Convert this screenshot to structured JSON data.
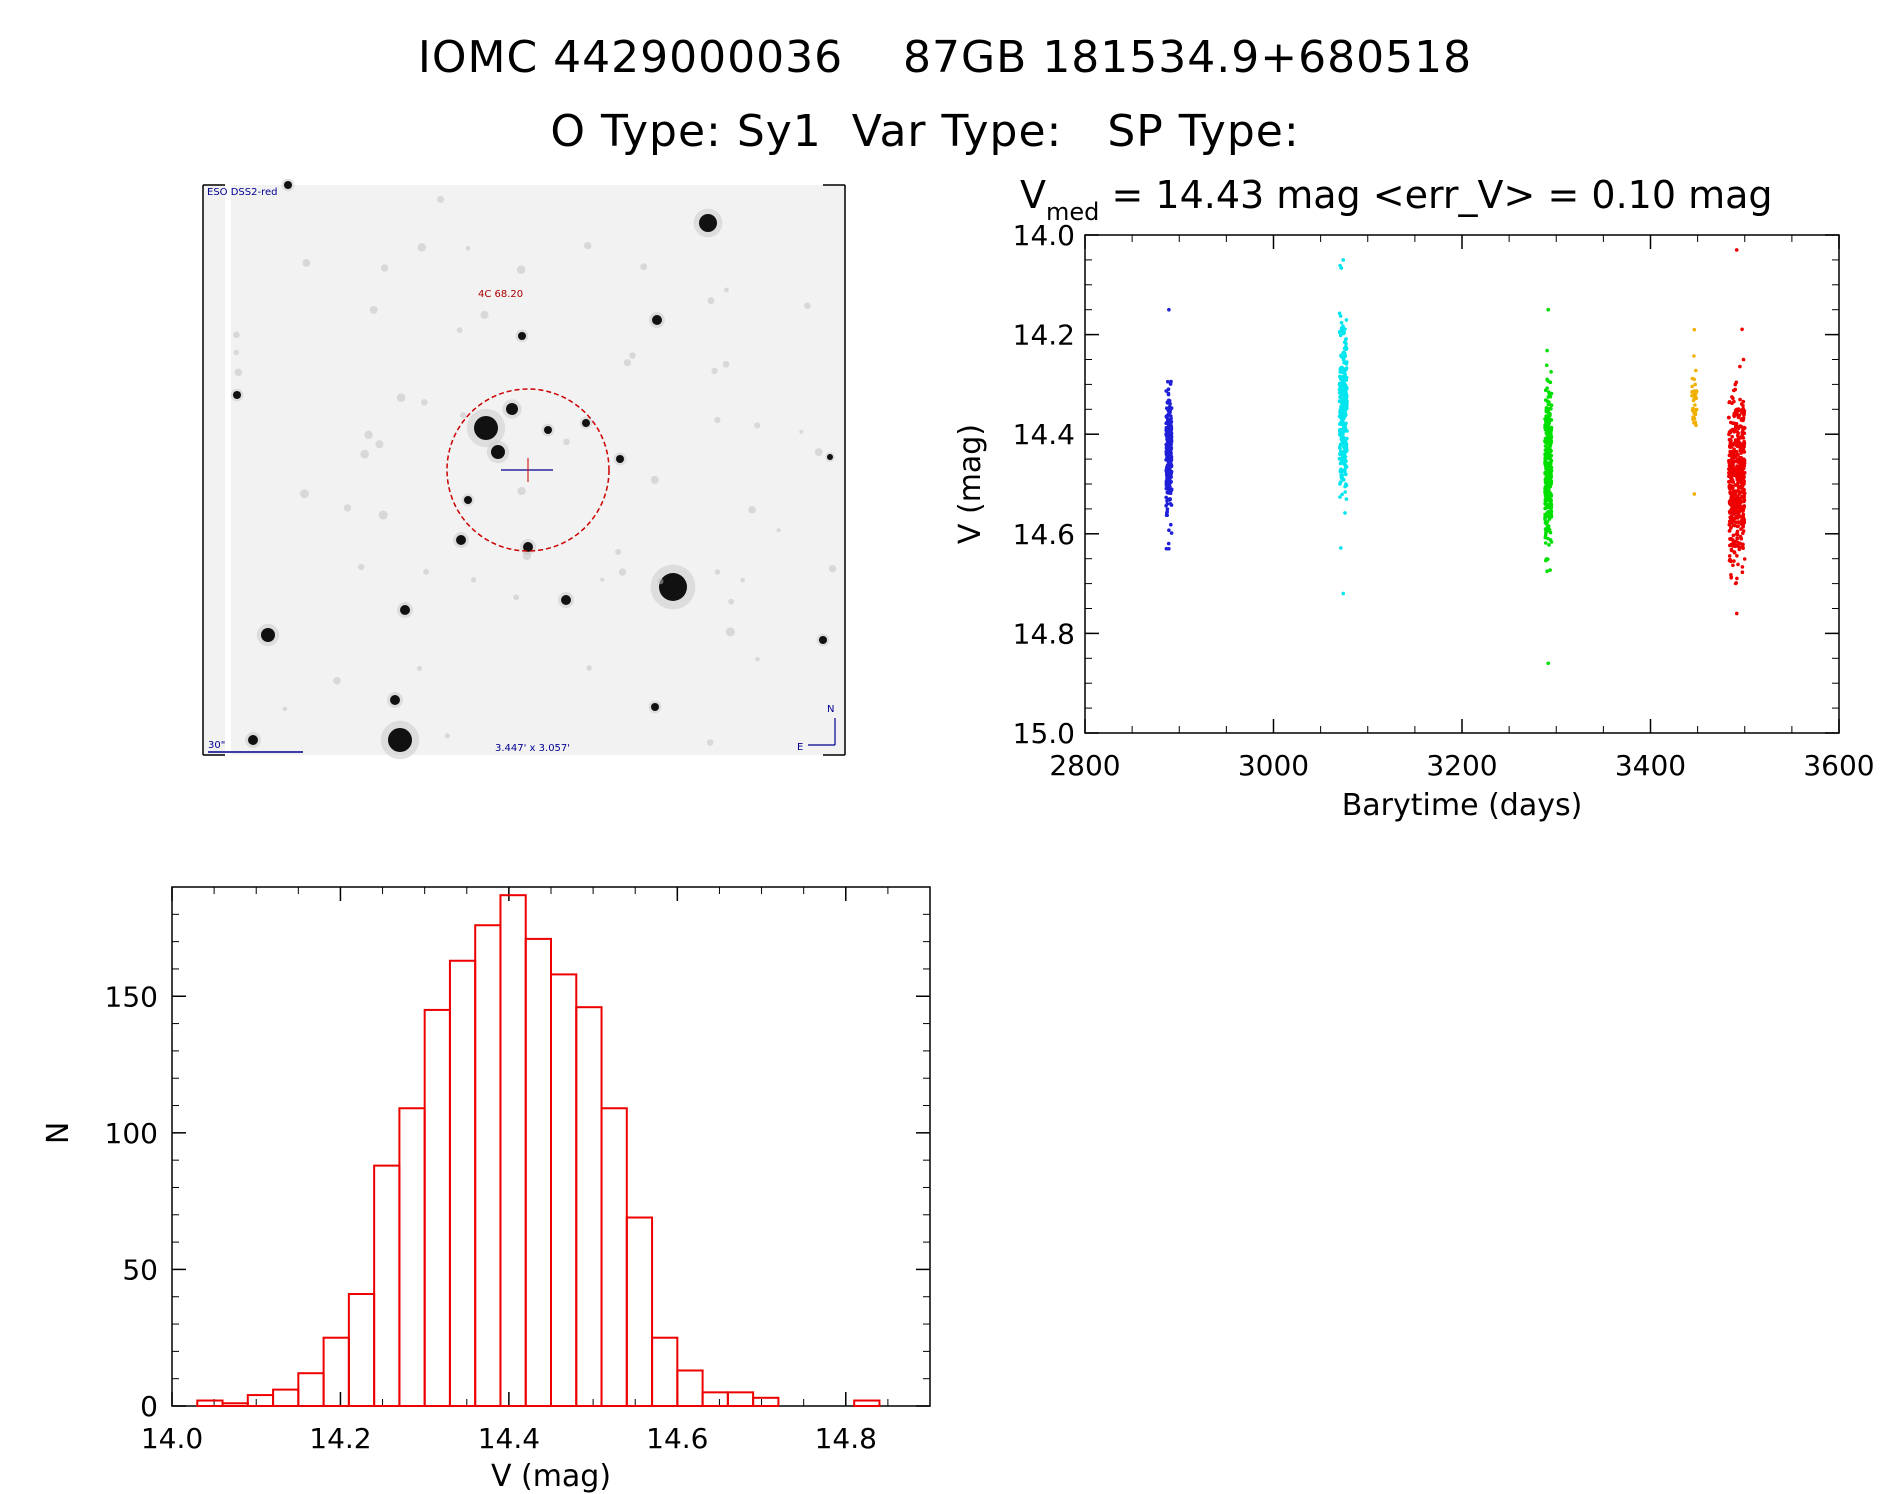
{
  "header": {
    "title": "IOMC 4429000036    87GB 181534.9+680518",
    "subtitle": "O Type: Sy1  Var Type:   SP Type:"
  },
  "finder": {
    "survey_label": "ESO DSS2-red",
    "object_label": "4C 68.20",
    "scale_label": "30\"",
    "fov_label": "3.447' x 3.057'",
    "north_label": "N",
    "east_label": "E"
  },
  "colors": {
    "blue": "#1f1fd8",
    "cyan": "#00e5ee",
    "green": "#00e000",
    "orange": "#f0b000",
    "red": "#ee0000",
    "finder_circle": "#cc0000",
    "finder_label": "#aa0000",
    "finder_annot": "#000090"
  },
  "chart_data": [
    {
      "type": "scatter",
      "title_main": "V",
      "title_sub": "med",
      "title_rest": " = 14.43 mag <err_V> = 0.10 mag",
      "xlabel": "Barytime (days)",
      "ylabel": "V (mag)",
      "xlim": [
        2800,
        3600
      ],
      "ylim": [
        15.0,
        14.0
      ],
      "xticks": [
        2800,
        3000,
        3200,
        3400,
        3600
      ],
      "yticks": [
        14.0,
        14.2,
        14.4,
        14.6,
        14.8,
        15.0
      ],
      "series": [
        {
          "color": "blue",
          "x_range": [
            2886,
            2892
          ],
          "y_core": [
            14.32,
            14.56
          ],
          "y_extent": [
            14.15,
            14.63
          ],
          "n_points": 260
        },
        {
          "color": "cyan",
          "x_range": [
            3070,
            3078
          ],
          "y_core": [
            14.18,
            14.52
          ],
          "y_extent": [
            14.05,
            14.72
          ],
          "n_points": 300
        },
        {
          "color": "green",
          "x_range": [
            3288,
            3295
          ],
          "y_core": [
            14.3,
            14.62
          ],
          "y_extent": [
            14.15,
            14.86
          ],
          "n_points": 340
        },
        {
          "color": "orange",
          "x_range": [
            3444,
            3449
          ],
          "y_core": [
            14.27,
            14.4
          ],
          "y_extent": [
            14.19,
            14.52
          ],
          "n_points": 40
        },
        {
          "color": "red",
          "x_range": [
            3483,
            3500
          ],
          "y_core": [
            14.33,
            14.65
          ],
          "y_extent": [
            14.03,
            14.76
          ],
          "n_points": 520
        }
      ]
    },
    {
      "type": "bar",
      "subtype": "histogram",
      "xlabel": "V (mag)",
      "ylabel": "N",
      "xlim": [
        14.0,
        14.9
      ],
      "ylim": [
        0,
        190
      ],
      "xticks": [
        14.0,
        14.2,
        14.4,
        14.6,
        14.8
      ],
      "yticks": [
        0,
        50,
        100,
        150
      ],
      "bin_width": 0.03,
      "bins_start": [
        14.03,
        14.06,
        14.09,
        14.12,
        14.15,
        14.18,
        14.21,
        14.24,
        14.27,
        14.3,
        14.33,
        14.36,
        14.39,
        14.42,
        14.45,
        14.48,
        14.51,
        14.54,
        14.57,
        14.6,
        14.63,
        14.66,
        14.69,
        14.72,
        14.75,
        14.78,
        14.81,
        14.84,
        14.87
      ],
      "values": [
        2,
        1,
        4,
        6,
        12,
        25,
        41,
        88,
        109,
        145,
        163,
        176,
        187,
        171,
        158,
        146,
        109,
        69,
        25,
        13,
        5,
        5,
        3,
        0,
        0,
        0,
        2,
        0,
        0
      ]
    }
  ]
}
